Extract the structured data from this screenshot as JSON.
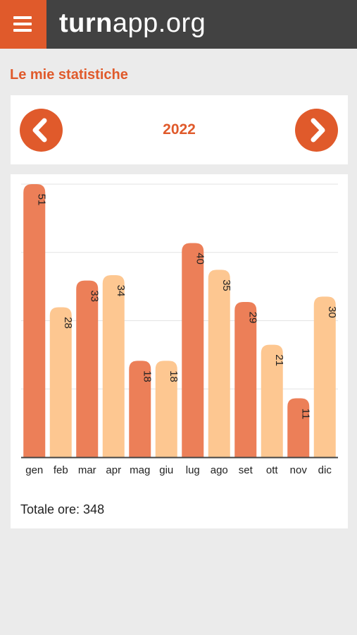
{
  "header": {
    "logo_bold": "turn",
    "logo_rest": "app.org"
  },
  "page_title": "Le mie statistiche",
  "year_nav": {
    "year": "2022"
  },
  "chart_data": {
    "type": "bar",
    "categories": [
      "gen",
      "feb",
      "mar",
      "apr",
      "mag",
      "giu",
      "lug",
      "ago",
      "set",
      "ott",
      "nov",
      "dic"
    ],
    "values": [
      51,
      28,
      33,
      34,
      18,
      18,
      40,
      35,
      29,
      21,
      11,
      30
    ],
    "ylim": [
      0,
      51
    ],
    "grid": true,
    "value_labels": true,
    "colors": [
      "#ec7f58",
      "#fdc791"
    ]
  },
  "summary": {
    "total_label": "Totale ore: 348"
  },
  "colors": {
    "accent": "#e05a2b",
    "topbar": "#424242",
    "background": "#ebebeb"
  }
}
